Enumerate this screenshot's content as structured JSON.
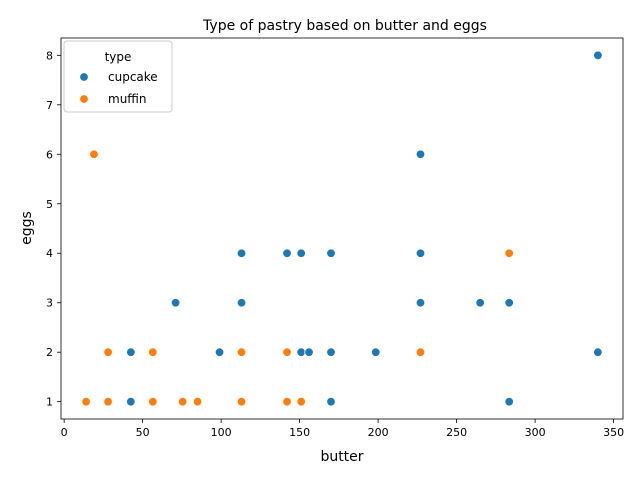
{
  "chart_data": {
    "type": "scatter",
    "title": "Type of pastry based on butter and eggs",
    "xlabel": "butter",
    "ylabel": "eggs",
    "xlim": [
      -2,
      356
    ],
    "ylim": [
      0.65,
      8.35
    ],
    "x_ticks": [
      0,
      50,
      100,
      150,
      200,
      250,
      300,
      350
    ],
    "y_ticks": [
      1,
      2,
      3,
      4,
      5,
      6,
      7,
      8
    ],
    "grid": false,
    "legend": {
      "title": "type",
      "placement": "top-left"
    },
    "series": [
      {
        "name": "cupcake",
        "color": "#1f77b4",
        "points": [
          [
            42.5,
            1
          ],
          [
            42.5,
            2
          ],
          [
            71,
            3
          ],
          [
            99,
            2
          ],
          [
            113,
            3
          ],
          [
            113,
            4
          ],
          [
            142,
            4
          ],
          [
            151,
            2
          ],
          [
            151,
            4
          ],
          [
            156,
            2
          ],
          [
            170,
            1
          ],
          [
            170,
            2
          ],
          [
            170,
            4
          ],
          [
            198.5,
            2
          ],
          [
            227,
            3
          ],
          [
            227,
            4
          ],
          [
            227,
            6
          ],
          [
            265,
            3
          ],
          [
            283.5,
            1
          ],
          [
            283.5,
            3
          ],
          [
            340,
            2
          ],
          [
            340,
            8
          ]
        ]
      },
      {
        "name": "muffin",
        "color": "#ff7f0e",
        "points": [
          [
            14,
            1
          ],
          [
            19,
            6
          ],
          [
            28,
            1
          ],
          [
            28,
            2
          ],
          [
            56.5,
            1
          ],
          [
            56.5,
            2
          ],
          [
            75.5,
            1
          ],
          [
            85,
            1
          ],
          [
            113,
            1
          ],
          [
            113,
            2
          ],
          [
            142,
            1
          ],
          [
            142,
            2
          ],
          [
            151,
            1
          ],
          [
            227,
            2
          ],
          [
            283.5,
            4
          ]
        ]
      }
    ]
  }
}
